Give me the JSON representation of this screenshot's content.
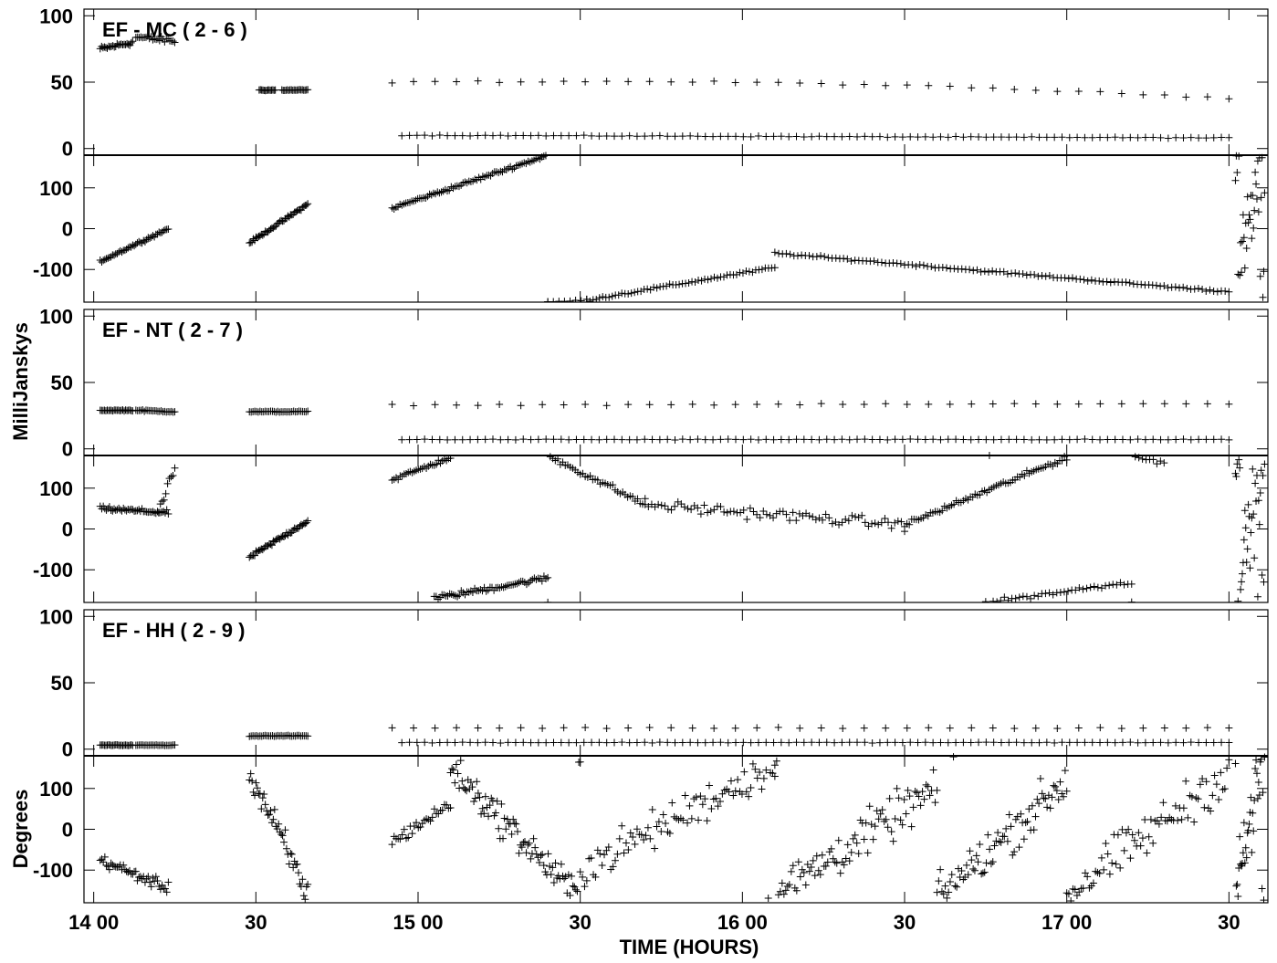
{
  "chart_data": {
    "type": "scatter",
    "ylabel_amplitude": "MilliJanskys",
    "ylabel_phase": "Degrees",
    "xlabel": "TIME (HOURS)",
    "x_tick_labels": [
      "14 00",
      "30",
      "15 00",
      "30",
      "16 00",
      "30",
      "17 00",
      "30"
    ],
    "x_tick_hours": [
      14.0,
      14.5,
      15.0,
      15.5,
      16.0,
      16.5,
      17.0,
      17.5
    ],
    "xlim": [
      13.97,
      17.62
    ],
    "amp_ylim": [
      -5,
      105
    ],
    "amp_ticks": [
      0,
      50,
      100
    ],
    "amp_tick_labels": [
      "0",
      "50",
      "100"
    ],
    "phase_ylim": [
      -180,
      180
    ],
    "phase_ticks": [
      -100,
      0,
      100
    ],
    "phase_tick_labels": [
      "-100",
      "0",
      "100"
    ],
    "baselines": [
      {
        "title": "EF - MC ( 2 - 6 )",
        "amplitude_segments": [
          {
            "x": [
              14.02,
              14.12
            ],
            "y": [
              75,
              80
            ],
            "noise": 3,
            "n": 24
          },
          {
            "x": [
              14.13,
              14.25
            ],
            "y": [
              84,
              81
            ],
            "noise": 3,
            "n": 24
          },
          {
            "x": [
              14.51,
              14.56
            ],
            "y": [
              44,
              44
            ],
            "noise": 0.6,
            "n": 14
          },
          {
            "x": [
              14.58,
              14.66
            ],
            "y": [
              44,
              44
            ],
            "noise": 0.6,
            "n": 20
          },
          {
            "x": [
              14.92,
              17.5
            ],
            "y": [
              50,
              38
            ],
            "noise": 1,
            "n": 40,
            "bulge": 5
          },
          {
            "x": [
              14.95,
              17.5
            ],
            "y": [
              10,
              8
            ],
            "noise": 0.5,
            "n": 110
          }
        ],
        "phase_segments": [
          {
            "x": [
              14.02,
              14.23
            ],
            "y": [
              -80,
              0
            ],
            "noise": 5,
            "n": 45
          },
          {
            "x": [
              14.48,
              14.66
            ],
            "y": [
              -35,
              60
            ],
            "noise": 5,
            "n": 45
          },
          {
            "x": [
              14.92,
              15.4
            ],
            "y": [
              50,
              180
            ],
            "noise": 6,
            "n": 80
          },
          {
            "x": [
              15.4,
              15.52
            ],
            "y": [
              -180,
              -175
            ],
            "noise": 4,
            "n": 8
          },
          {
            "x": [
              15.52,
              16.1
            ],
            "y": [
              -175,
              -95
            ],
            "noise": 5,
            "n": 60
          },
          {
            "x": [
              16.1,
              17.5
            ],
            "y": [
              -60,
              -155
            ],
            "noise": 4,
            "n": 120
          },
          {
            "x": [
              17.52,
              17.61
            ],
            "y": [
              -150,
              180
            ],
            "noise": 150,
            "n": 35
          }
        ]
      },
      {
        "title": "EF - NT ( 2 - 7 )",
        "amplitude_segments": [
          {
            "x": [
              14.02,
              14.12
            ],
            "y": [
              29,
              29
            ],
            "noise": 0.6,
            "n": 24
          },
          {
            "x": [
              14.13,
              14.25
            ],
            "y": [
              29,
              28
            ],
            "noise": 0.8,
            "n": 24
          },
          {
            "x": [
              14.48,
              14.66
            ],
            "y": [
              28,
              28
            ],
            "noise": 0.6,
            "n": 34
          },
          {
            "x": [
              14.92,
              17.5
            ],
            "y": [
              33,
              34
            ],
            "noise": 0.7,
            "n": 40
          },
          {
            "x": [
              14.95,
              17.5
            ],
            "y": [
              7,
              7
            ],
            "noise": 0.5,
            "n": 110
          }
        ],
        "phase_segments": [
          {
            "x": [
              14.02,
              14.23
            ],
            "y": [
              50,
              40
            ],
            "noise": 8,
            "n": 45
          },
          {
            "x": [
              14.2,
              14.25
            ],
            "y": [
              40,
              150
            ],
            "noise": 15,
            "n": 10
          },
          {
            "x": [
              14.48,
              14.66
            ],
            "y": [
              -70,
              20
            ],
            "noise": 8,
            "n": 45
          },
          {
            "x": [
              14.92,
              15.1
            ],
            "y": [
              120,
              175
            ],
            "noise": 8,
            "n": 30
          },
          {
            "x": [
              15.05,
              15.4
            ],
            "y": [
              -170,
              -120
            ],
            "noise": 10,
            "n": 60
          },
          {
            "x": [
              15.4,
              15.7
            ],
            "y": [
              180,
              60
            ],
            "noise": 12,
            "n": 40
          },
          {
            "x": [
              15.7,
              16.5
            ],
            "y": [
              60,
              10
            ],
            "noise": 20,
            "n": 80
          },
          {
            "x": [
              16.5,
              17.0
            ],
            "y": [
              10,
              175
            ],
            "noise": 10,
            "n": 70
          },
          {
            "x": [
              16.75,
              17.2
            ],
            "y": [
              -180,
              -130
            ],
            "noise": 8,
            "n": 40
          },
          {
            "x": [
              17.2,
              17.3
            ],
            "y": [
              180,
              160
            ],
            "noise": 8,
            "n": 10
          },
          {
            "x": [
              17.52,
              17.61
            ],
            "y": [
              -170,
              180
            ],
            "noise": 150,
            "n": 35
          }
        ]
      },
      {
        "title": "EF - HH ( 2 - 9 )",
        "amplitude_segments": [
          {
            "x": [
              14.02,
              14.12
            ],
            "y": [
              3,
              3
            ],
            "noise": 0.4,
            "n": 24
          },
          {
            "x": [
              14.13,
              14.25
            ],
            "y": [
              3,
              3
            ],
            "noise": 0.4,
            "n": 24
          },
          {
            "x": [
              14.48,
              14.66
            ],
            "y": [
              10,
              10
            ],
            "noise": 0.5,
            "n": 34
          },
          {
            "x": [
              14.92,
              17.5
            ],
            "y": [
              16,
              16
            ],
            "noise": 0.6,
            "n": 40
          },
          {
            "x": [
              14.95,
              17.5
            ],
            "y": [
              5,
              5
            ],
            "noise": 0.4,
            "n": 110
          }
        ],
        "phase_segments": [
          {
            "x": [
              14.02,
              14.23
            ],
            "y": [
              -75,
              -145
            ],
            "noise": 20,
            "n": 45
          },
          {
            "x": [
              14.48,
              14.66
            ],
            "y": [
              140,
              -160
            ],
            "noise": 60,
            "n": 45
          },
          {
            "x": [
              14.92,
              15.1
            ],
            "y": [
              -30,
              60
            ],
            "noise": 25,
            "n": 30
          },
          {
            "x": [
              15.1,
              15.5
            ],
            "y": [
              150,
              -170
            ],
            "noise": 60,
            "n": 90
          },
          {
            "x": [
              15.5,
              16.1
            ],
            "y": [
              -100,
              160
            ],
            "noise": 70,
            "n": 90
          },
          {
            "x": [
              16.1,
              16.6
            ],
            "y": [
              -160,
              100
            ],
            "noise": 80,
            "n": 90
          },
          {
            "x": [
              16.6,
              17.0
            ],
            "y": [
              -170,
              120
            ],
            "noise": 80,
            "n": 80
          },
          {
            "x": [
              17.0,
              17.5
            ],
            "y": [
              -160,
              140
            ],
            "noise": 80,
            "n": 80
          },
          {
            "x": [
              17.52,
              17.61
            ],
            "y": [
              -160,
              180
            ],
            "noise": 150,
            "n": 35
          }
        ]
      }
    ],
    "grid": false,
    "marker": "+"
  }
}
